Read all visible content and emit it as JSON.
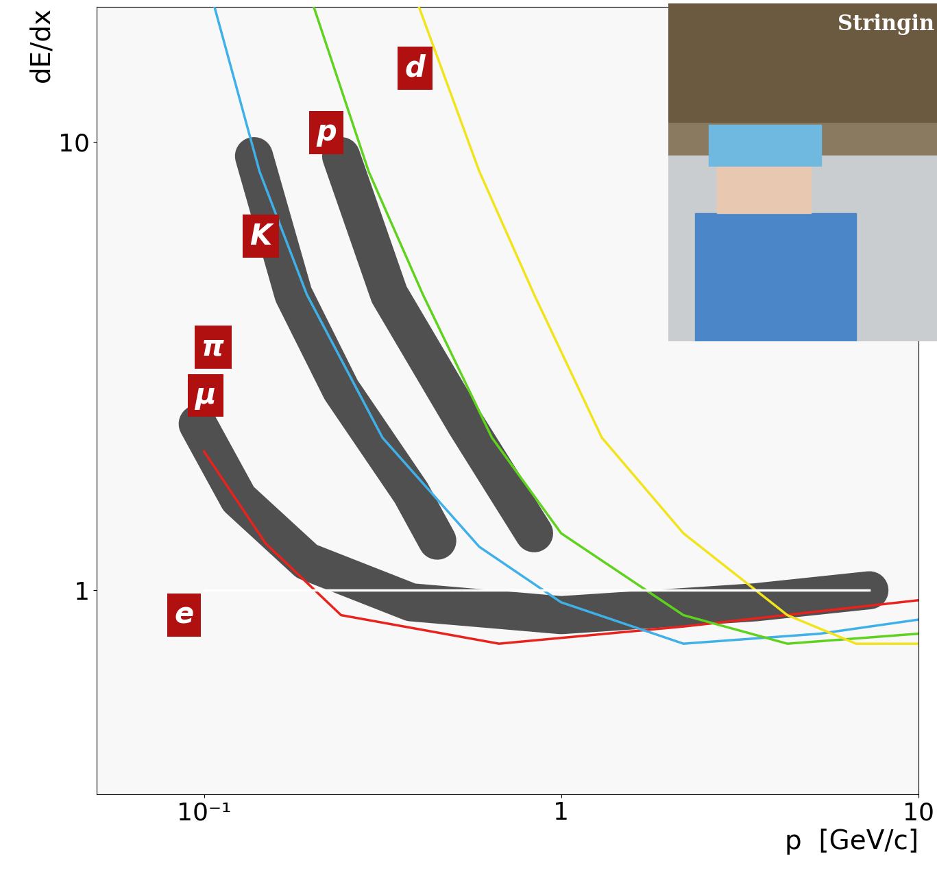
{
  "chart_data": {
    "type": "line",
    "x_label": "p  [GeV/c]",
    "y_label": "dE/dx",
    "log": true,
    "xlim": [
      0.05,
      10
    ],
    "ylim": [
      0.35,
      20
    ],
    "xticks": [
      {
        "value": 0.1,
        "label": "10⁻¹"
      },
      1,
      {
        "value": 10,
        "label": "10"
      }
    ],
    "yticks": [
      1,
      10
    ],
    "grid": false,
    "series": [
      {
        "type": "band",
        "color": "#333333",
        "x": [
          0.096,
          0.125,
          0.194,
          0.38,
          1,
          3.5,
          7.3
        ],
        "values": [
          2.35,
          1.6,
          1.16,
          0.94,
          0.88,
          0.94,
          1.0
        ]
      },
      {
        "type": "band",
        "color": "#333333",
        "x": [
          0.138,
          0.178,
          0.242,
          0.38,
          0.45
        ],
        "values": [
          9.3,
          4.57,
          2.8,
          1.65,
          1.29
        ]
      },
      {
        "type": "band",
        "color": "#333333",
        "x": [
          0.242,
          0.33,
          0.54,
          0.84
        ],
        "values": [
          9.3,
          4.57,
          2.35,
          1.34
        ]
      },
      {
        "type": "line",
        "color": "#e8221c",
        "x": [
          0.1,
          0.149,
          0.242,
          0.67,
          2.2,
          10
        ],
        "values": [
          2.04,
          1.27,
          0.88,
          0.76,
          0.83,
          0.95
        ]
      },
      {
        "type": "line",
        "color": "#3fb0e8",
        "x": [
          0.107,
          0.143,
          0.194,
          0.316,
          0.59,
          1,
          2.2,
          5.3,
          10
        ],
        "values": [
          20,
          8.6,
          4.57,
          2.19,
          1.25,
          0.94,
          0.76,
          0.8,
          0.86
        ]
      },
      {
        "type": "line",
        "color": "#5fd21e",
        "x": [
          0.203,
          0.289,
          0.41,
          0.64,
          1.0,
          2.2,
          4.3,
          10
        ],
        "values": [
          20,
          8.6,
          4.57,
          2.19,
          1.34,
          0.88,
          0.76,
          0.8
        ]
      },
      {
        "type": "line",
        "color": "#f2e41c",
        "x": [
          0.4,
          0.59,
          0.84,
          1.3,
          2.2,
          4.3,
          6.7,
          10
        ],
        "values": [
          20,
          8.6,
          4.57,
          2.19,
          1.34,
          0.88,
          0.76,
          0.76
        ]
      },
      {
        "type": "line",
        "color": "#ffffff",
        "x": [
          0.1,
          7.3
        ],
        "values": [
          1,
          1
        ]
      }
    ],
    "annotations": [
      {
        "text": "d",
        "x": 0.39,
        "y": 14.6
      },
      {
        "text": "p",
        "x": 0.22,
        "y": 10.5
      },
      {
        "text": "K",
        "x": 0.144,
        "y": 6.16
      },
      {
        "text": "π",
        "x": 0.106,
        "y": 3.49
      },
      {
        "text": "μ",
        "x": 0.101,
        "y": 2.72
      },
      {
        "text": "e",
        "x": 0.088,
        "y": 0.88
      }
    ],
    "inset_text": "Stringin"
  }
}
